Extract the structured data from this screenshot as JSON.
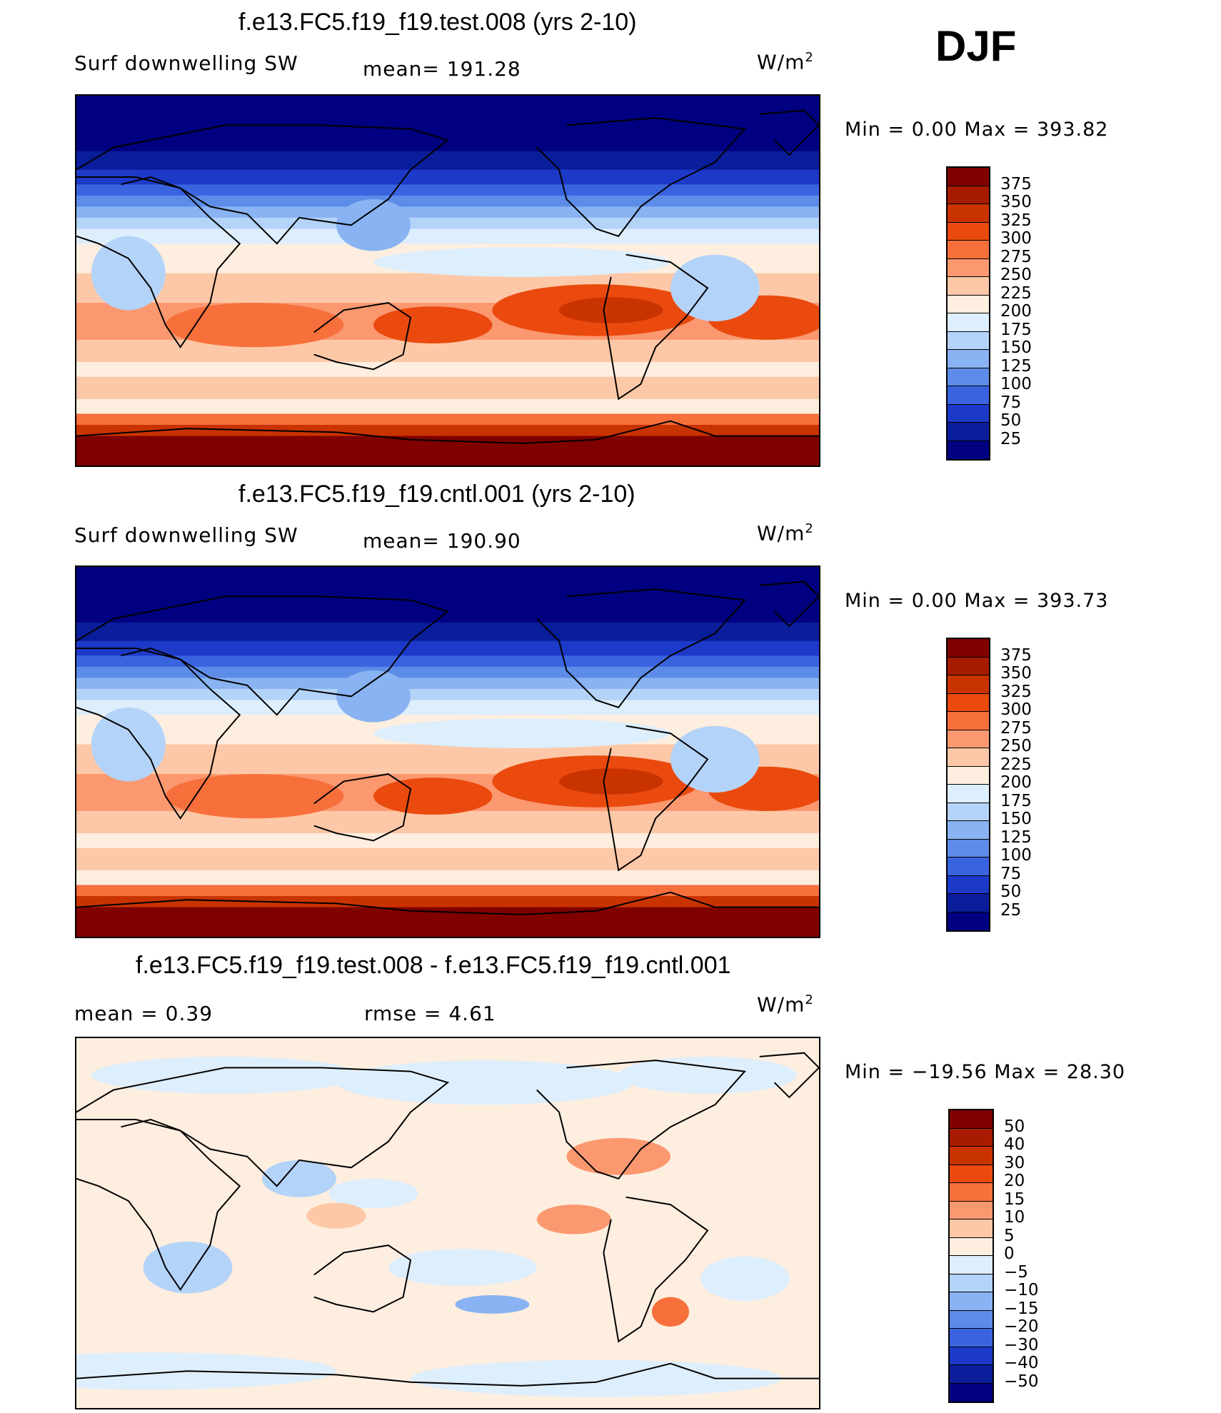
{
  "season": "DJF",
  "panels": [
    {
      "title": "f.e13.FC5.f19_f19.test.008 (yrs 2-10)",
      "left_label": "Surf downwelling SW",
      "mid_label": "mean=  191.28",
      "units": "W/m",
      "units_sup": "2",
      "minmax": "Min =     0.00  Max  =  393.82"
    },
    {
      "title": "f.e13.FC5.f19_f19.cntl.001 (yrs 2-10)",
      "left_label": "Surf downwelling SW",
      "mid_label": "mean=  190.90",
      "units": "W/m",
      "units_sup": "2",
      "minmax": "Min =     0.00  Max  =  393.73"
    },
    {
      "title": "f.e13.FC5.f19_f19.test.008 - f.e13.FC5.f19_f19.cntl.001",
      "left_label": "mean =     0.39",
      "mid_label": "rmse =     4.61",
      "units": "W/m",
      "units_sup": "2",
      "minmax": "Min = −19.56  Max =    28.30"
    }
  ],
  "chart_data": [
    {
      "type": "heatmap",
      "title": "f.e13.FC5.f19_f19.test.008 (yrs 2-10)",
      "variable": "Surf downwelling SW",
      "mean": 191.28,
      "min": 0.0,
      "max": 393.82,
      "units": "W/m2",
      "colorbar_levels": [
        "375",
        "350",
        "325",
        "300",
        "275",
        "250",
        "225",
        "200",
        "175",
        "150",
        "125",
        "100",
        "75",
        "50",
        "25"
      ],
      "colorbar_colors": [
        "#800000",
        "#a71c00",
        "#c93300",
        "#ea4a0e",
        "#f7703c",
        "#fb9870",
        "#fdc8a7",
        "#feeedf",
        "#ddeefc",
        "#b4d3f8",
        "#89b3f2",
        "#5d8ce8",
        "#3a63e0",
        "#1c39c8",
        "#0a1d9a",
        "#000080"
      ]
    },
    {
      "type": "heatmap",
      "title": "f.e13.FC5.f19_f19.cntl.001 (yrs 2-10)",
      "variable": "Surf downwelling SW",
      "mean": 190.9,
      "min": 0.0,
      "max": 393.73,
      "units": "W/m2",
      "colorbar_levels": [
        "375",
        "350",
        "325",
        "300",
        "275",
        "250",
        "225",
        "200",
        "175",
        "150",
        "125",
        "100",
        "75",
        "50",
        "25"
      ],
      "colorbar_colors": [
        "#800000",
        "#a71c00",
        "#c93300",
        "#ea4a0e",
        "#f7703c",
        "#fb9870",
        "#fdc8a7",
        "#feeedf",
        "#ddeefc",
        "#b4d3f8",
        "#89b3f2",
        "#5d8ce8",
        "#3a63e0",
        "#1c39c8",
        "#0a1d9a",
        "#000080"
      ]
    },
    {
      "type": "heatmap",
      "title": "f.e13.FC5.f19_f19.test.008 - f.e13.FC5.f19_f19.cntl.001",
      "mean": 0.39,
      "rmse": 4.61,
      "min": -19.56,
      "max": 28.3,
      "units": "W/m2",
      "colorbar_levels": [
        "50",
        "40",
        "30",
        "20",
        "15",
        "10",
        "5",
        "0",
        "−5",
        "−10",
        "−15",
        "−20",
        "−30",
        "−40",
        "−50"
      ],
      "colorbar_colors": [
        "#800000",
        "#a71c00",
        "#c93300",
        "#ea4a0e",
        "#f7703c",
        "#fb9870",
        "#fdc8a7",
        "#feeedf",
        "#ddeefc",
        "#b4d3f8",
        "#89b3f2",
        "#5d8ce8",
        "#3a63e0",
        "#1c39c8",
        "#0a1d9a",
        "#000080"
      ]
    }
  ]
}
